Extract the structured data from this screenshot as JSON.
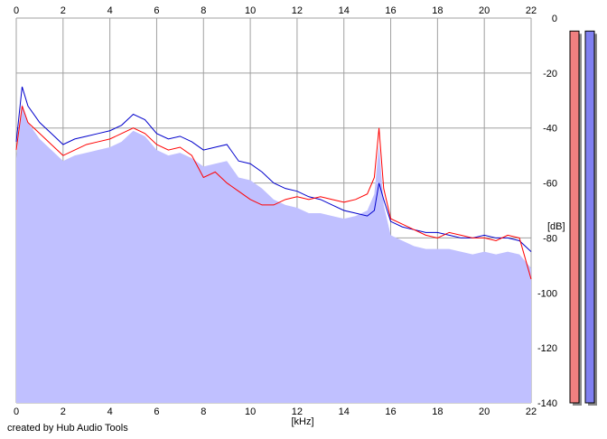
{
  "chart_data": {
    "type": "line",
    "xlabel": "[kHz]",
    "ylabel": "[dB]",
    "xlim": [
      0,
      22
    ],
    "ylim": [
      -140,
      0
    ],
    "x_ticks": [
      "0",
      "2",
      "4",
      "6",
      "8",
      "10",
      "12",
      "14",
      "16",
      "18",
      "20",
      "22"
    ],
    "y_ticks": [
      "0",
      "-20",
      "-40",
      "-60",
      "-80",
      "-100",
      "-120",
      "-140"
    ],
    "grid": true,
    "series": [
      {
        "color": "#0000cc",
        "x": [
          0,
          0.25,
          0.5,
          1,
          1.5,
          2,
          2.5,
          3,
          3.5,
          4,
          4.5,
          5,
          5.5,
          6,
          6.5,
          7,
          7.5,
          8,
          8.5,
          9,
          9.5,
          10,
          10.5,
          11,
          11.5,
          12,
          12.5,
          13,
          13.5,
          14,
          14.5,
          15,
          15.3,
          15.5,
          15.7,
          16,
          16.5,
          17,
          17.5,
          18,
          18.5,
          19,
          19.5,
          20,
          20.5,
          21,
          21.5,
          22
        ],
        "values": [
          -45,
          -25,
          -32,
          -38,
          -42,
          -46,
          -44,
          -43,
          -42,
          -41,
          -39,
          -35,
          -37,
          -42,
          -44,
          -43,
          -45,
          -48,
          -47,
          -46,
          -52,
          -53,
          -56,
          -60,
          -62,
          -63,
          -65,
          -66,
          -68,
          -70,
          -71,
          -72,
          -70,
          -60,
          -66,
          -74,
          -76,
          -77,
          -78,
          -78,
          -79,
          -80,
          -80,
          -79,
          -80,
          -80,
          -81,
          -85
        ]
      },
      {
        "color": "#ff0000",
        "x": [
          0,
          0.25,
          0.5,
          1,
          1.5,
          2,
          2.5,
          3,
          3.5,
          4,
          4.5,
          5,
          5.5,
          6,
          6.5,
          7,
          7.5,
          8,
          8.5,
          9,
          9.5,
          10,
          10.5,
          11,
          11.5,
          12,
          12.5,
          13,
          13.5,
          14,
          14.5,
          15,
          15.3,
          15.5,
          15.7,
          16,
          16.5,
          17,
          17.5,
          18,
          18.5,
          19,
          19.5,
          20,
          20.5,
          21,
          21.5,
          22
        ],
        "values": [
          -48,
          -32,
          -38,
          -42,
          -46,
          -50,
          -48,
          -46,
          -45,
          -44,
          -42,
          -40,
          -42,
          -46,
          -48,
          -47,
          -50,
          -58,
          -56,
          -60,
          -63,
          -66,
          -68,
          -68,
          -66,
          -65,
          -66,
          -65,
          -66,
          -67,
          -66,
          -64,
          -58,
          -40,
          -62,
          -73,
          -75,
          -77,
          -79,
          -80,
          -78,
          -79,
          -80,
          -80,
          -81,
          -79,
          -80,
          -95
        ]
      }
    ],
    "meters": [
      {
        "color": "#f08080",
        "level": 0.98
      },
      {
        "color": "#8080f0",
        "level": 0.98
      }
    ],
    "fill_color": "#c0c0ff",
    "grid_color": "#a0a0a0"
  },
  "footer": {
    "credit": "created by Hub Audio Tools"
  }
}
